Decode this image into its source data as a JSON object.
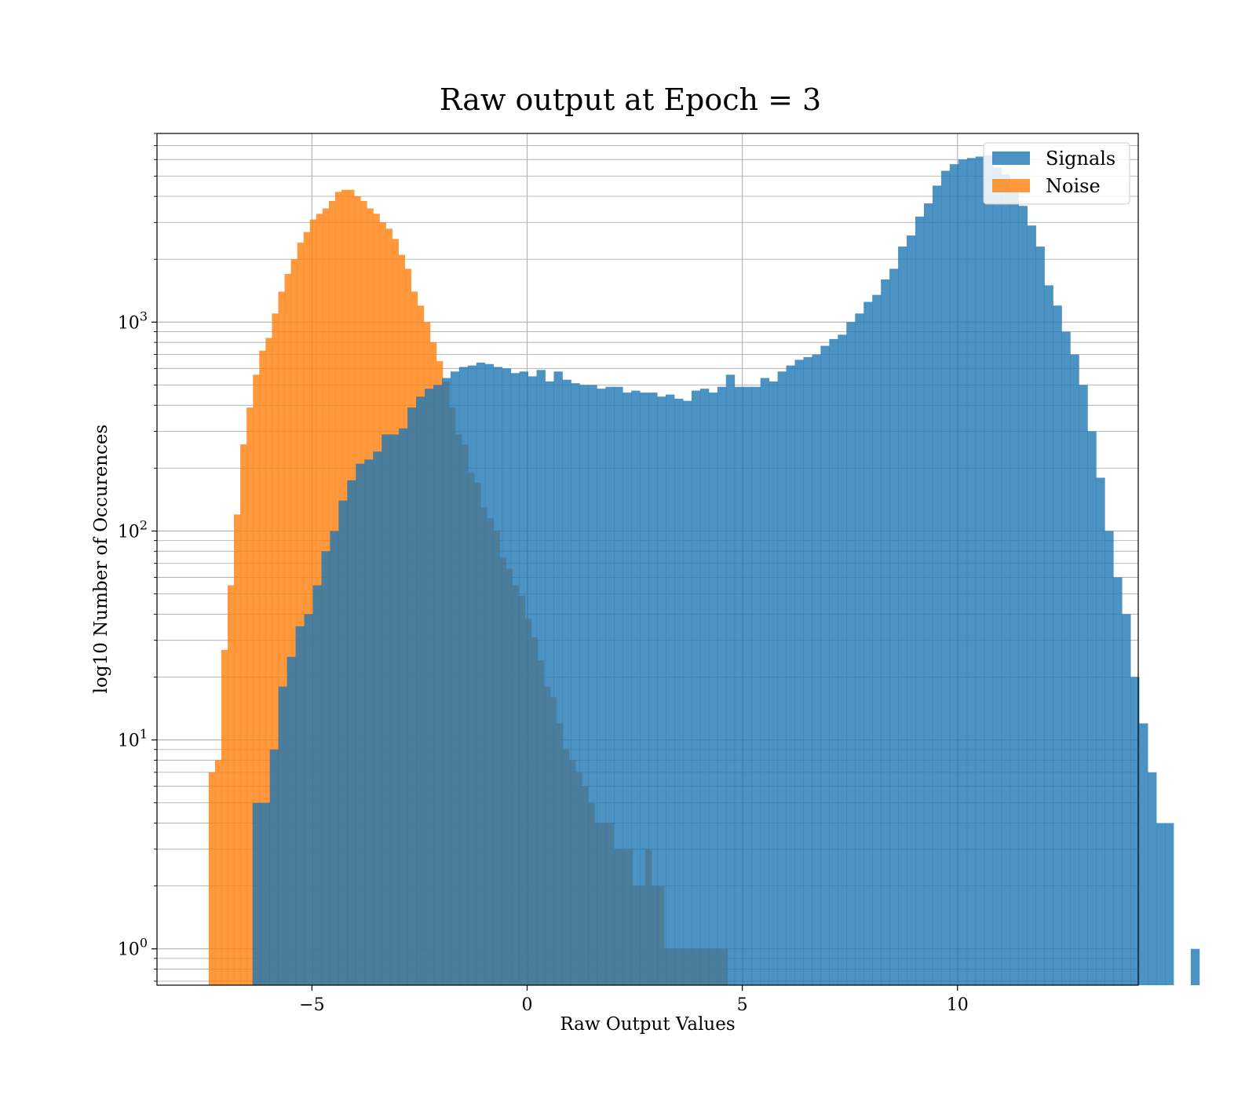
{
  "chart_data": {
    "type": "bar",
    "title": "Raw output at Epoch = 3",
    "xlabel": "Raw Output Values",
    "ylabel": "log10 Number of Occurences",
    "yscale": "log",
    "xlim": [
      -8.6,
      14.2
    ],
    "ylim": [
      0.67,
      8000
    ],
    "grid": "on (major and minor)",
    "legend_position": "top-right",
    "x_ticks": [
      {
        "value": -5,
        "label": "−5"
      },
      {
        "value": 0,
        "label": "0"
      },
      {
        "value": 5,
        "label": "5"
      },
      {
        "value": 10,
        "label": "10"
      }
    ],
    "y_ticks": [
      {
        "value": 1,
        "base": "10",
        "exp": "0"
      },
      {
        "value": 10,
        "base": "10",
        "exp": "1"
      },
      {
        "value": 100,
        "base": "10",
        "exp": "2"
      },
      {
        "value": 1000,
        "base": "10",
        "exp": "3"
      }
    ],
    "series": [
      {
        "name": "Signals",
        "color": "#1f77b4",
        "opacity": 0.8,
        "bins": {
          "start": -6.38,
          "width": 0.2,
          "counts": [
            5,
            5,
            9,
            18,
            25,
            35,
            40,
            55,
            80,
            100,
            140,
            175,
            210,
            220,
            240,
            290,
            290,
            310,
            390,
            440,
            480,
            500,
            540,
            580,
            610,
            620,
            640,
            630,
            610,
            600,
            570,
            580,
            550,
            590,
            520,
            580,
            530,
            510,
            500,
            500,
            480,
            490,
            490,
            460,
            470,
            460,
            460,
            440,
            450,
            430,
            420,
            470,
            480,
            460,
            490,
            560,
            490,
            490,
            490,
            540,
            520,
            580,
            620,
            660,
            680,
            700,
            770,
            830,
            870,
            1000,
            1100,
            1250,
            1350,
            1600,
            1800,
            2300,
            2600,
            3200,
            3700,
            4500,
            5300,
            5700,
            6000,
            6100,
            6200,
            6300,
            5500,
            5100,
            4200,
            3600,
            2900,
            2300,
            1500,
            1200,
            900,
            700,
            500,
            300,
            180,
            100,
            60,
            40,
            20,
            12,
            7,
            4,
            4,
            0,
            0,
            1
          ]
        }
      },
      {
        "name": "Noise",
        "color": "#ff7f0e",
        "opacity": 0.8,
        "bins": {
          "start": -7.4,
          "width": 0.147,
          "counts": [
            7,
            8,
            27,
            55,
            120,
            260,
            390,
            560,
            730,
            840,
            1100,
            1400,
            1700,
            2000,
            2400,
            2700,
            3100,
            3300,
            3500,
            3800,
            4200,
            4300,
            4300,
            4000,
            3800,
            3500,
            3300,
            3000,
            2800,
            2500,
            2100,
            1800,
            1400,
            1200,
            1000,
            800,
            650,
            520,
            390,
            290,
            260,
            190,
            170,
            130,
            115,
            100,
            75,
            66,
            55,
            49,
            38,
            31,
            24,
            18,
            16,
            12,
            9,
            8,
            7,
            6,
            5,
            4,
            4,
            4,
            3,
            3,
            3,
            2,
            2,
            3,
            2,
            2,
            1,
            1,
            1,
            1,
            1,
            1,
            1,
            1,
            1,
            1
          ]
        }
      }
    ]
  }
}
